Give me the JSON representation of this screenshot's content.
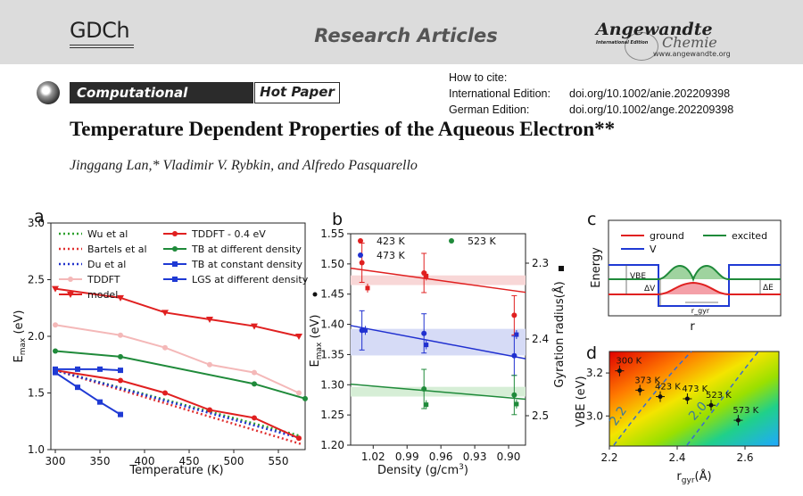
{
  "header": {
    "journal_left": "GDCh",
    "section": "Research Articles",
    "journal_right_title": "Angewandte",
    "journal_right_sub": "International Edition",
    "journal_right_chemie": "Chemie",
    "journal_right_url": "www.angewandte.org"
  },
  "banner": {
    "category": "Computational Chemistry",
    "tag": "Hot Paper"
  },
  "citation": {
    "how_to_cite": "How to cite:",
    "international_label": "International Edition:",
    "international_doi": "doi.org/10.1002/anie.202209398",
    "german_label": "German Edition:",
    "german_doi": "doi.org/10.1002/ange.202209398"
  },
  "article": {
    "title": "Temperature Dependent Properties of the Aqueous Electron**",
    "authors": "Jinggang Lan,* Vladimir V. Rybkin, and Alfredo Pasquarello"
  },
  "chart_data": [
    {
      "panel": "a",
      "type": "line",
      "xlabel": "Temperature (K)",
      "ylabel": "E_max (eV)",
      "xlim": [
        295,
        580
      ],
      "ylim": [
        1.0,
        3.0
      ],
      "xticks": [
        "300",
        "350",
        "400",
        "450",
        "500",
        "550"
      ],
      "yticks": [
        "1.0",
        "1.5",
        "2.0",
        "2.5",
        "3.0"
      ],
      "series": [
        {
          "name": "Wu et al",
          "style": "dotted",
          "color": "#2ca02c",
          "x": [
            300,
            575
          ],
          "y": [
            1.7,
            1.12
          ]
        },
        {
          "name": "Bartels et al",
          "style": "dotted",
          "color": "#e03030",
          "x": [
            300,
            575
          ],
          "y": [
            1.7,
            1.05
          ]
        },
        {
          "name": "Du et al",
          "style": "dotted",
          "color": "#2233cc",
          "x": [
            300,
            575
          ],
          "y": [
            1.7,
            1.1
          ]
        },
        {
          "name": "TDDFT",
          "style": "marker",
          "color": "#f4b8b8",
          "x": [
            300,
            373,
            423,
            473,
            523,
            573
          ],
          "y": [
            2.1,
            2.01,
            1.9,
            1.75,
            1.68,
            1.5
          ]
        },
        {
          "name": "model",
          "style": "triangle",
          "color": "#e02020",
          "x": [
            300,
            373,
            423,
            473,
            523,
            573
          ],
          "y": [
            2.42,
            2.34,
            2.21,
            2.15,
            2.09,
            2.0
          ]
        },
        {
          "name": "TDDFT - 0.4 eV",
          "style": "marker",
          "color": "#e02020",
          "x": [
            300,
            373,
            423,
            473,
            523,
            573
          ],
          "y": [
            1.7,
            1.61,
            1.5,
            1.35,
            1.28,
            1.1
          ]
        },
        {
          "name": "TB at different density",
          "style": "marker",
          "color": "#1f8a3a",
          "x": [
            300,
            373,
            523,
            580
          ],
          "y": [
            1.87,
            1.82,
            1.58,
            1.45
          ]
        },
        {
          "name": "TB at constant density",
          "style": "square",
          "color": "#1f3ad4",
          "x": [
            300,
            325,
            350,
            373
          ],
          "y": [
            1.71,
            1.71,
            1.71,
            1.7
          ]
        },
        {
          "name": "LGS at different density",
          "style": "square",
          "color": "#1f3ad4",
          "x": [
            300,
            325,
            350,
            373
          ],
          "y": [
            1.68,
            1.55,
            1.42,
            1.31
          ]
        }
      ]
    },
    {
      "panel": "b",
      "type": "scatter",
      "xlabel": "Density (g/cm3)",
      "ylabel": "E_max (eV)",
      "ylabel_right": "Gyration radius(Å)",
      "xlim": [
        1.04,
        0.885
      ],
      "ylim": [
        1.2,
        1.55
      ],
      "xticks": [
        "1.02",
        "0.99",
        "0.96",
        "0.93",
        "0.90"
      ],
      "yticks": [
        "1.20",
        "1.25",
        "1.30",
        "1.35",
        "1.40",
        "1.45",
        "1.50",
        "1.55"
      ],
      "yticks_right": [
        "2.3",
        "2.4",
        "2.5"
      ],
      "legend": [
        "423 K",
        "473 K",
        "523 K"
      ],
      "series": [
        {
          "name": "423 K",
          "color": "#e02020",
          "x_circle": [
            1.03,
            0.975,
            0.895
          ],
          "y_circle": [
            1.502,
            1.485,
            1.415
          ],
          "x_square": [
            1.025,
            0.973
          ],
          "y_square": [
            1.46,
            1.48
          ],
          "fit": [
            1.493,
            1.453
          ]
        },
        {
          "name": "473 K",
          "color": "#2030d0",
          "x_circle": [
            1.03,
            0.975,
            0.895
          ],
          "y_circle": [
            1.39,
            1.385,
            1.348
          ],
          "x_square": [
            1.027,
            0.973,
            0.893
          ],
          "y_square": [
            1.39,
            1.366,
            1.383
          ],
          "fit": [
            1.398,
            1.343
          ]
        },
        {
          "name": "523 K",
          "color": "#1f8a3a",
          "x_circle": [
            0.975,
            0.895
          ],
          "y_circle": [
            1.293,
            1.283
          ],
          "x_square": [
            0.973,
            0.893
          ],
          "y_square": [
            1.267,
            1.268
          ],
          "fit": [
            1.301,
            1.276
          ]
        }
      ]
    },
    {
      "panel": "c",
      "type": "diagram",
      "xlabel": "r",
      "ylabel": "Energy",
      "legend": [
        "ground",
        "excited",
        "V"
      ],
      "labels": [
        "VBE",
        "ΔV",
        "ΔE",
        "r_gyr"
      ]
    },
    {
      "panel": "d",
      "type": "heatmap",
      "xlabel": "r_gyr(Å)",
      "ylabel": "VBE (eV)",
      "xlim": [
        2.2,
        2.7
      ],
      "ylim": [
        2.86,
        3.3
      ],
      "xticks": [
        "2.2",
        "2.4",
        "2.6"
      ],
      "yticks": [
        "3.0",
        "3.2"
      ],
      "contours": [
        "2.2",
        "2.0"
      ],
      "points": [
        {
          "label": "300 K",
          "x": 2.23,
          "y": 3.21
        },
        {
          "label": "373 K",
          "x": 2.29,
          "y": 3.12
        },
        {
          "label": "423 K",
          "x": 2.35,
          "y": 3.09
        },
        {
          "label": "473 K",
          "x": 2.43,
          "y": 3.08
        },
        {
          "label": "523 K",
          "x": 2.5,
          "y": 3.05
        },
        {
          "label": "573 K",
          "x": 2.58,
          "y": 2.98
        }
      ]
    }
  ]
}
